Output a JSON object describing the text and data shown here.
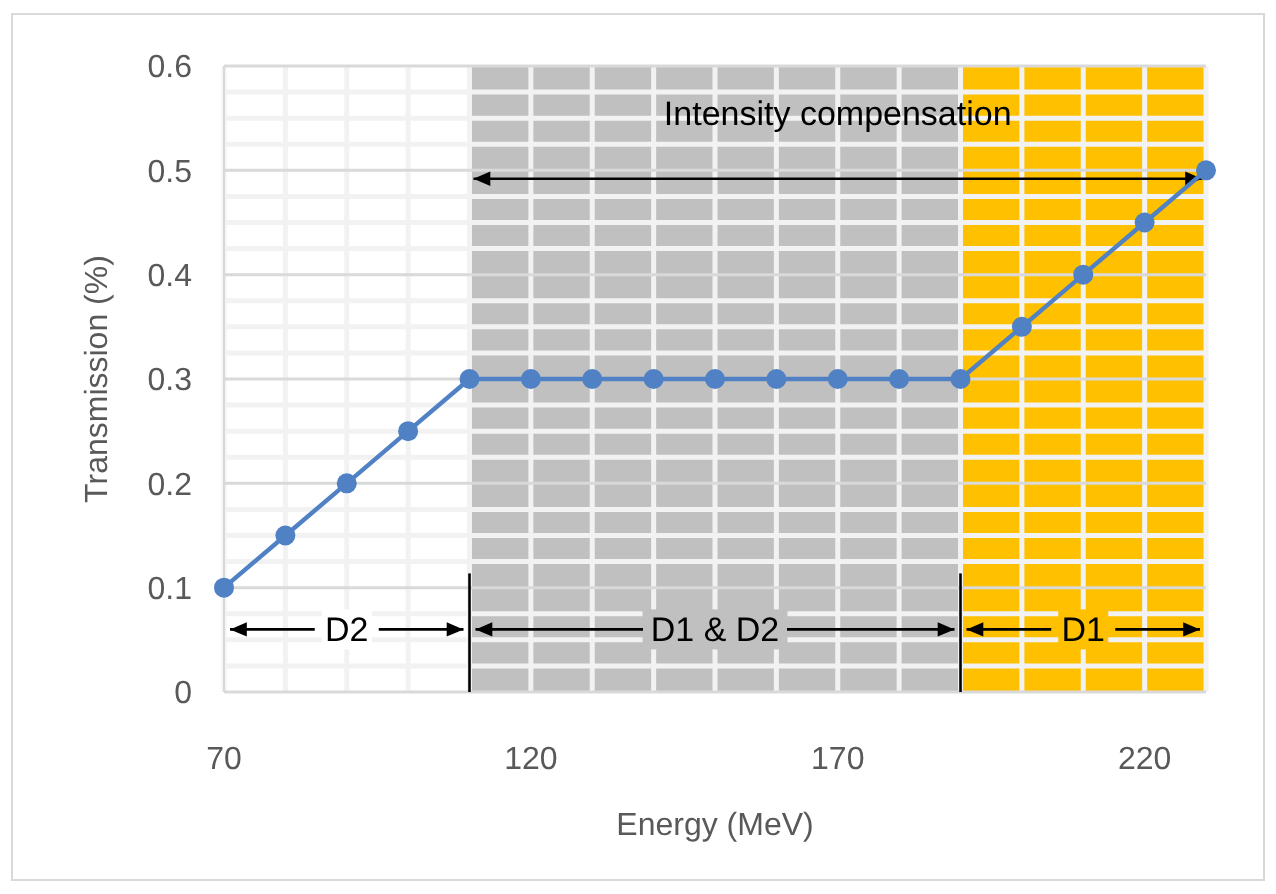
{
  "chart_data": {
    "type": "line",
    "xlabel": "Energy (MeV)",
    "ylabel": "Transmission (%)",
    "x": [
      70,
      80,
      90,
      100,
      110,
      120,
      130,
      140,
      150,
      160,
      170,
      180,
      190,
      200,
      210,
      220,
      230
    ],
    "series": [
      {
        "color": "#4f81c4",
        "values": [
          0.1,
          0.15,
          0.2,
          0.25,
          0.3,
          0.3,
          0.3,
          0.3,
          0.3,
          0.3,
          0.3,
          0.3,
          0.3,
          0.35,
          0.4,
          0.45,
          0.5
        ]
      }
    ],
    "xlim": [
      70,
      230
    ],
    "xticks": [
      70,
      120,
      170,
      220
    ],
    "ylim": [
      0,
      0.6
    ],
    "yticks": [
      0,
      0.1,
      0.2,
      0.3,
      0.4,
      0.5,
      0.6
    ],
    "grid": true,
    "marker": "circle",
    "line_style": "solid",
    "bands": [
      {
        "axis": "x",
        "from": 110,
        "to": 190,
        "label": "D1 & D2",
        "color": "#c0c0c0"
      },
      {
        "axis": "x",
        "from": 190,
        "to": 230,
        "label": "D1",
        "color": "#ffc000"
      }
    ],
    "annotations": [
      "Intensity compensation",
      {
        "text": "D2",
        "x": 90,
        "y": 0.06
      }
    ]
  }
}
